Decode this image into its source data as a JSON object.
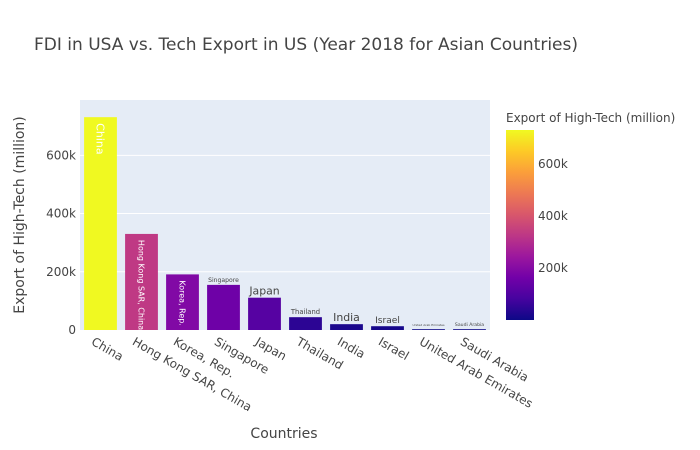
{
  "chart_data": {
    "type": "bar",
    "title": "FDI in USA vs. Tech Export in US (Year 2018 for Asian Countries)",
    "xlabel": "Countries",
    "ylabel": "Export of High-Tech (million)",
    "categories": [
      "China",
      "Hong Kong SAR, China",
      "Korea, Rep.",
      "Singapore",
      "Japan",
      "Thailand",
      "India",
      "Israel",
      "United Arab Emirates",
      "Saudi Arabia"
    ],
    "values": [
      731000,
      330000,
      191000,
      155000,
      111000,
      44000,
      20000,
      13000,
      1500,
      300
    ],
    "bar_text": [
      "China",
      "Hong Kong SAR, China",
      "Korea, Rep.",
      "Singapore",
      "Japan",
      "Thailand",
      "India",
      "Israel",
      "United Arab Emirates",
      "Saudi Arabia"
    ],
    "ylim": [
      0,
      790000
    ],
    "yticks": [
      0,
      200000,
      400000,
      600000
    ],
    "ytick_labels": [
      "0",
      "200k",
      "400k",
      "600k"
    ],
    "grid": true,
    "colorbar": {
      "title": "Export of High-Tech (million)",
      "range": [
        300,
        731000
      ],
      "ticks": [
        200000,
        400000,
        600000
      ],
      "tick_labels": [
        "200k",
        "400k",
        "600k"
      ],
      "colorscale": [
        "#0d0887",
        "#46039f",
        "#7201a8",
        "#9c179e",
        "#bd3786",
        "#d8576b",
        "#ed7953",
        "#fb9f3a",
        "#fdca26",
        "#f0f921"
      ]
    },
    "colors": {
      "plot_bg": "#e5ecf6",
      "grid": "#ffffff",
      "text": "#444444"
    }
  }
}
